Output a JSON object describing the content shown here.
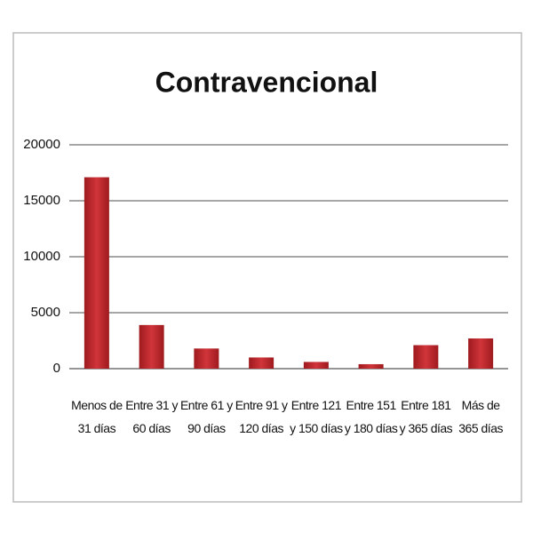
{
  "chart_data": {
    "type": "bar",
    "title": "Contravencional",
    "categories": [
      "Menos de 31 días",
      "Entre 31 y 60 días",
      "Entre 61 y 90 días",
      "Entre 91 y 120 días",
      "Entre 121 y 150 días",
      "Entre 151 y 180 días",
      "Entre 181 y 365 días",
      "Más de 365 días"
    ],
    "values": [
      17100,
      3900,
      1800,
      1000,
      600,
      400,
      2100,
      2700
    ],
    "color": "#c0282c",
    "ylim": [
      0,
      20000
    ],
    "yticks": [
      0,
      5000,
      10000,
      15000,
      20000
    ],
    "grid": true
  }
}
